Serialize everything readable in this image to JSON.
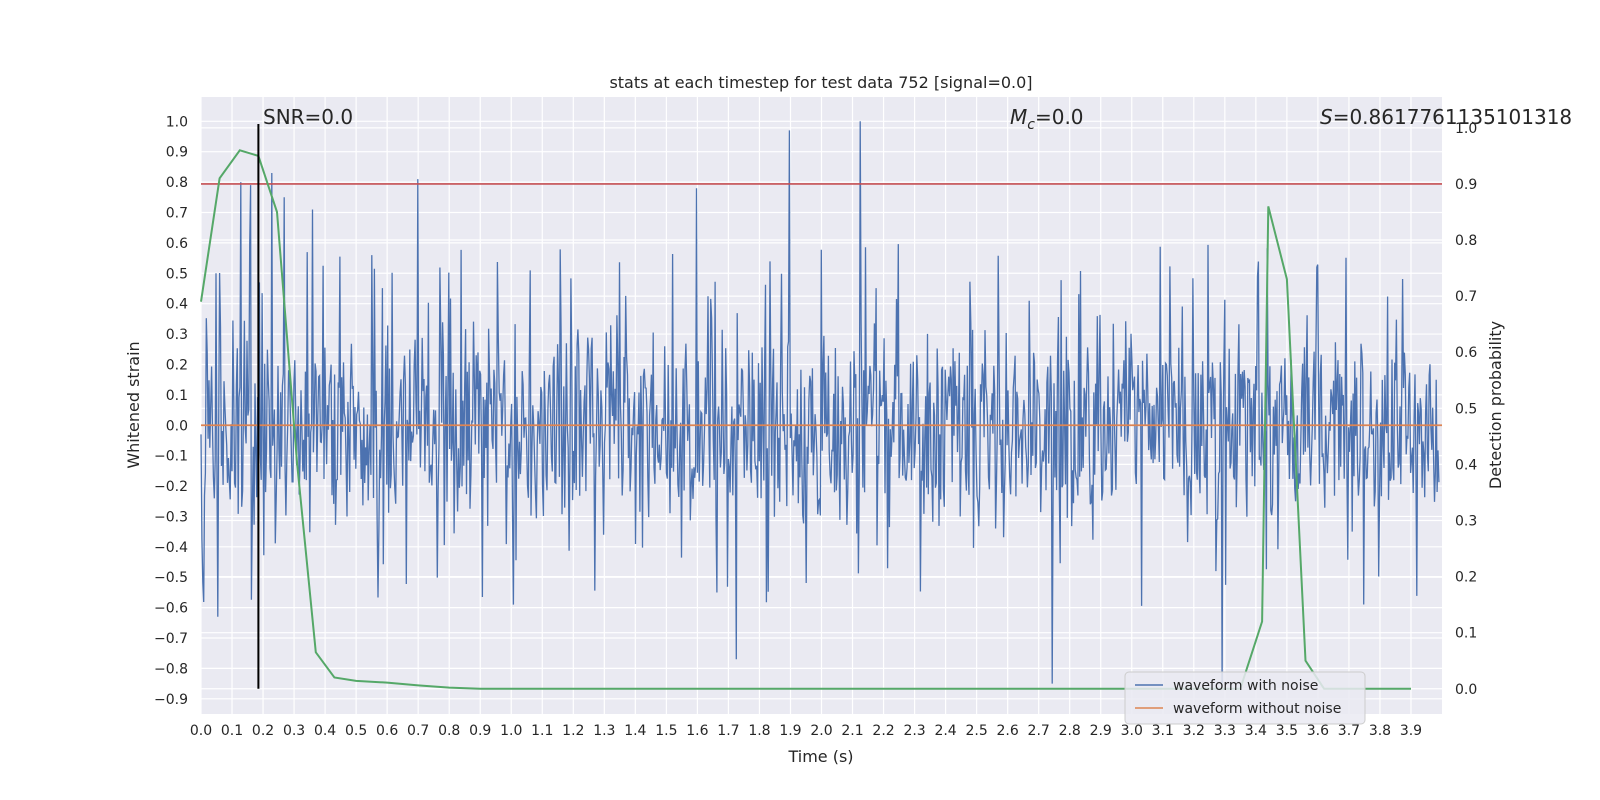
{
  "chart_data": {
    "type": "line",
    "title": "stats at each timestep for test data 752 [signal=0.0]",
    "xlabel": "Time (s)",
    "ylabel": "Whitened strain",
    "ylabel_right": "Detection probability",
    "xlim": [
      0.0,
      4.0
    ],
    "ylim": [
      -0.95,
      1.08
    ],
    "ylim_right": [
      -0.045,
      1.055
    ],
    "x_ticks": [
      "0.0",
      "0.1",
      "0.2",
      "0.3",
      "0.4",
      "0.5",
      "0.6",
      "0.7",
      "0.8",
      "0.9",
      "1.0",
      "1.1",
      "1.2",
      "1.3",
      "1.4",
      "1.5",
      "1.6",
      "1.7",
      "1.8",
      "1.9",
      "2.0",
      "2.1",
      "2.2",
      "2.3",
      "2.4",
      "2.5",
      "2.6",
      "2.7",
      "2.8",
      "2.9",
      "3.0",
      "3.1",
      "3.2",
      "3.3",
      "3.4",
      "3.5",
      "3.6",
      "3.7",
      "3.8",
      "3.9"
    ],
    "y_ticks": [
      "1.0",
      "0.9",
      "0.8",
      "0.7",
      "0.6",
      "0.5",
      "0.4",
      "0.3",
      "0.2",
      "0.1",
      "0.0",
      "−0.1",
      "−0.2",
      "−0.3",
      "−0.4",
      "−0.5",
      "−0.6",
      "−0.7",
      "−0.8",
      "−0.9"
    ],
    "y_ticks_right": [
      "1.0",
      "0.9",
      "0.8",
      "0.7",
      "0.6",
      "0.5",
      "0.4",
      "0.3",
      "0.2",
      "0.1",
      "0.0"
    ],
    "annotations": {
      "snr": "SNR=0.0",
      "mc_symbol": "M",
      "mc_sub": "c",
      "mc_value": "=0.0",
      "s_symbol": "S",
      "s_value": "=0.8617761135101318"
    },
    "series": [
      {
        "name": "waveform with noise",
        "color": "#4c72b0",
        "note": "dense whitened strain noise, approx range -0.85 to 1.0",
        "peaks": [
          {
            "x": 0.05,
            "y": 0.5
          },
          {
            "x": 0.055,
            "y": -0.63
          },
          {
            "x": 0.13,
            "y": 0.8
          },
          {
            "x": 0.16,
            "y": 0.79
          },
          {
            "x": 0.23,
            "y": 0.83
          },
          {
            "x": 0.27,
            "y": 0.75
          },
          {
            "x": 0.36,
            "y": 0.71
          },
          {
            "x": 0.7,
            "y": 0.81
          },
          {
            "x": 1.6,
            "y": 0.78
          },
          {
            "x": 1.73,
            "y": -0.77
          },
          {
            "x": 1.9,
            "y": 0.97
          },
          {
            "x": 2.13,
            "y": 1.0
          },
          {
            "x": 2.75,
            "y": -0.85
          },
          {
            "x": 3.3,
            "y": -0.85
          }
        ]
      },
      {
        "name": "waveform without noise",
        "color": "#dd8452",
        "x": [
          0.0,
          4.0
        ],
        "y": [
          0.0,
          0.0
        ]
      },
      {
        "name": "detection probability",
        "axis": "right",
        "color": "#55a868",
        "x": [
          0.0,
          0.06,
          0.125,
          0.185,
          0.245,
          0.31,
          0.37,
          0.43,
          0.5,
          0.6,
          0.7,
          0.8,
          0.9,
          1.0,
          2.0,
          3.0,
          3.2,
          3.27,
          3.35,
          3.42,
          3.44,
          3.5,
          3.56,
          3.62,
          3.7,
          3.9
        ],
        "y": [
          0.69,
          0.91,
          0.96,
          0.95,
          0.85,
          0.4,
          0.065,
          0.02,
          0.014,
          0.011,
          0.006,
          0.002,
          0.0,
          0.0,
          0.0,
          0.0,
          0.0,
          0.0,
          0.0,
          0.12,
          0.86,
          0.73,
          0.05,
          0.0,
          0.0,
          0.0
        ]
      }
    ],
    "threshold_line": {
      "value": 0.9,
      "axis": "right",
      "color": "#c44e52"
    },
    "marker_line": {
      "x": 0.185,
      "color": "#000000"
    },
    "legend": {
      "position": "bottom-right",
      "entries": [
        "waveform with noise",
        "waveform without noise"
      ]
    }
  }
}
